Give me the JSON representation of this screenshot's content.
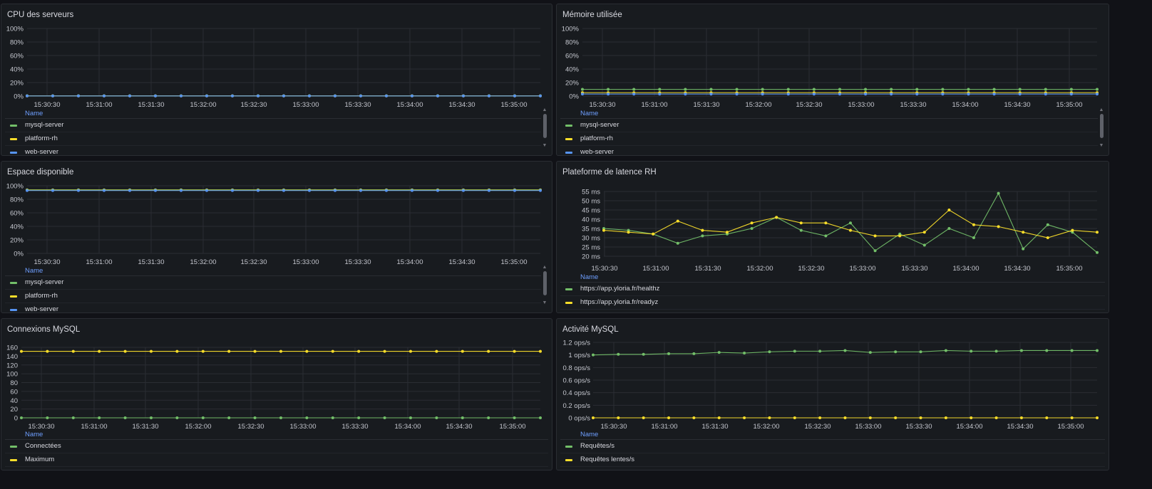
{
  "colors": {
    "green": "#73bf69",
    "yellow": "#fade2a",
    "blue": "#5794f2",
    "muted_blue": "#8ab8ff"
  },
  "legend_header": "Name",
  "x_ticks": [
    "15:30:30",
    "15:31:00",
    "15:31:30",
    "15:32:00",
    "15:32:30",
    "15:33:00",
    "15:33:30",
    "15:34:00",
    "15:34:30",
    "15:35:00"
  ],
  "panels": [
    {
      "title": "CPU des serveurs",
      "legend": [
        {
          "label": "mysql-server",
          "color": "green"
        },
        {
          "label": "platform-rh",
          "color": "yellow"
        },
        {
          "label": "web-server",
          "color": "blue"
        }
      ],
      "chart_data": {
        "type": "line",
        "ylabel": "",
        "yticks": [
          "100%",
          "80%",
          "60%",
          "40%",
          "20%",
          "0%"
        ],
        "ylim": [
          0,
          100
        ],
        "unit": "%",
        "series": [
          {
            "name": "mysql-server",
            "value": 0.5
          },
          {
            "name": "platform-rh",
            "value": 0.3
          },
          {
            "name": "web-server",
            "value": 0.2
          }
        ]
      }
    },
    {
      "title": "Mémoire utilisée",
      "legend": [
        {
          "label": "mysql-server",
          "color": "green"
        },
        {
          "label": "platform-rh",
          "color": "yellow"
        },
        {
          "label": "web-server",
          "color": "blue"
        }
      ],
      "chart_data": {
        "type": "line",
        "ylabel": "",
        "yticks": [
          "100%",
          "80%",
          "60%",
          "40%",
          "20%",
          "0%"
        ],
        "ylim": [
          0,
          100
        ],
        "unit": "%",
        "series": [
          {
            "name": "mysql-server",
            "value": 10
          },
          {
            "name": "platform-rh",
            "value": 5
          },
          {
            "name": "web-server",
            "value": 3
          }
        ]
      }
    },
    {
      "title": "Espace disponible",
      "legend": [
        {
          "label": "mysql-server",
          "color": "green"
        },
        {
          "label": "platform-rh",
          "color": "yellow"
        },
        {
          "label": "web-server",
          "color": "blue"
        }
      ],
      "chart_data": {
        "type": "line",
        "ylabel": "",
        "yticks": [
          "100%",
          "80%",
          "60%",
          "40%",
          "20%",
          "0%"
        ],
        "ylim": [
          0,
          100
        ],
        "unit": "%",
        "series": [
          {
            "name": "mysql-server",
            "value": 94
          },
          {
            "name": "platform-rh",
            "value": 93.5
          },
          {
            "name": "web-server",
            "value": 93
          }
        ]
      }
    },
    {
      "title": "Plateforme de latence RH",
      "legend": [
        {
          "label": "https://app.yloria.fr/healthz",
          "color": "green"
        },
        {
          "label": "https://app.yloria.fr/readyz",
          "color": "yellow"
        }
      ],
      "chart_data": {
        "type": "line",
        "ylabel": "",
        "yticks": [
          "55 ms",
          "50 ms",
          "45 ms",
          "40 ms",
          "35 ms",
          "30 ms",
          "25 ms",
          "20 ms"
        ],
        "ylim": [
          20,
          55
        ],
        "unit": "ms",
        "series": [
          {
            "name": "https://app.yloria.fr/healthz",
            "values": [
              35,
              34,
              32,
              27,
              31,
              32,
              35,
              41,
              34,
              31,
              38,
              23,
              32,
              26,
              35,
              30,
              54,
              24,
              37,
              33,
              22
            ]
          },
          {
            "name": "https://app.yloria.fr/readyz",
            "values": [
              34,
              33,
              32,
              39,
              34,
              33,
              38,
              41,
              38,
              38,
              34,
              31,
              31,
              33,
              45,
              37,
              36,
              33,
              30,
              34,
              33
            ]
          }
        ]
      }
    },
    {
      "title": "Connexions MySQL",
      "legend": [
        {
          "label": "Connectées",
          "color": "green"
        },
        {
          "label": "Maximum",
          "color": "yellow"
        }
      ],
      "chart_data": {
        "type": "line",
        "ylabel": "",
        "yticks": [
          "160",
          "140",
          "120",
          "100",
          "80",
          "60",
          "40",
          "20",
          "0"
        ],
        "ylim": [
          0,
          160
        ],
        "unit": "",
        "series": [
          {
            "name": "Connectées",
            "value": 0
          },
          {
            "name": "Maximum",
            "value": 151
          }
        ]
      }
    },
    {
      "title": "Activité MySQL",
      "legend": [
        {
          "label": "Requêtes/s",
          "color": "green"
        },
        {
          "label": "Requêtes lentes/s",
          "color": "yellow"
        }
      ],
      "chart_data": {
        "type": "line",
        "ylabel": "",
        "yticks": [
          "1.2 ops/s",
          "1 ops/s",
          "0.8 ops/s",
          "0.6 ops/s",
          "0.4 ops/s",
          "0.2 ops/s",
          "0 ops/s"
        ],
        "ylim": [
          0,
          1.2
        ],
        "unit": "ops/s",
        "series": [
          {
            "name": "Requêtes/s",
            "values": [
              1.0,
              1.01,
              1.01,
              1.02,
              1.02,
              1.04,
              1.03,
              1.05,
              1.06,
              1.06,
              1.07,
              1.04,
              1.05,
              1.05,
              1.07,
              1.06,
              1.06,
              1.07,
              1.07,
              1.07,
              1.07
            ]
          },
          {
            "name": "Requêtes lentes/s",
            "value": 0
          }
        ]
      }
    }
  ]
}
